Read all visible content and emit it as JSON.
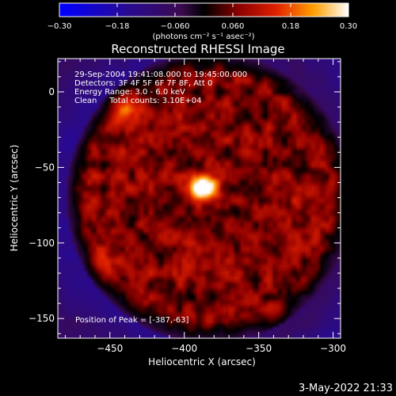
{
  "chart_data": {
    "type": "heatmap",
    "title": "Reconstructed RHESSI Image",
    "xlabel": "Heliocentric X (arcsec)",
    "ylabel": "Heliocentric Y (arcsec)",
    "xlim": [
      -485,
      -295
    ],
    "ylim": [
      -163,
      22
    ],
    "x_ticks": [
      -450,
      -400,
      -350,
      -300
    ],
    "y_ticks": [
      0,
      -50,
      -100,
      -150
    ],
    "x_tick_labels": [
      "−450",
      "−400",
      "−350",
      "−300"
    ],
    "y_tick_labels": [
      "0",
      "−50",
      "−100",
      "−150"
    ],
    "colorbar": {
      "range": [
        -0.3,
        0.3
      ],
      "ticks": [
        -0.3,
        -0.18,
        -0.06,
        0.06,
        0.18,
        0.3
      ],
      "tick_labels": [
        "−0.30",
        "−0.18",
        "−0.060",
        "0.060",
        "0.18",
        "0.30"
      ],
      "unit_label": "(photons cm⁻² s⁻¹ asec⁻²)"
    },
    "annotations": [
      "29-Sep-2004 19:41:08.000 to 19:45:00.000",
      "Detectors: 3F 4F 5F 6F 7F 8F, Att 0",
      "Energy Range: 3.0 - 6.0 keV",
      "Clean     Total counts: 3.10E+04"
    ],
    "peak_label": "Position of Peak = [-387,-63]",
    "peak": {
      "x": -387,
      "y": -63,
      "value": 0.3
    },
    "image_center": {
      "x": -383,
      "y": -70
    },
    "disk_radius_arcsec": 96,
    "secondary_sources": [
      {
        "x": -442,
        "y": -10,
        "value": 0.15
      },
      {
        "x": -318,
        "y": -65,
        "value": 0.13
      },
      {
        "x": -340,
        "y": -148,
        "value": 0.1
      },
      {
        "x": -455,
        "y": -115,
        "value": 0.12
      }
    ],
    "legend": "none",
    "grid": false
  },
  "timestamp": "3-May-2022 21:33"
}
